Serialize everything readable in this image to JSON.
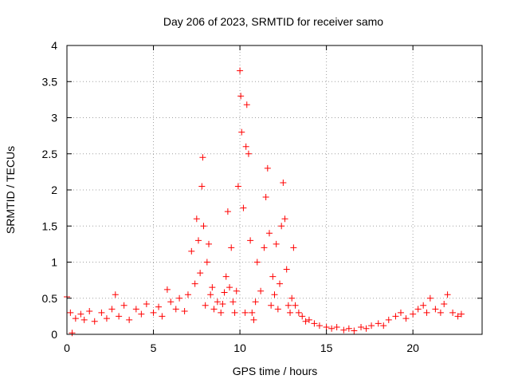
{
  "chart_data": {
    "type": "scatter",
    "title": "Day 206 of 2023, SRMTID for receiver samo",
    "xlabel": "GPS time / hours",
    "ylabel": "SRMTID / TECUs",
    "xlim": [
      0,
      24
    ],
    "ylim": [
      0,
      4
    ],
    "xticks": [
      0,
      5,
      10,
      15,
      20
    ],
    "yticks": [
      0,
      0.5,
      1,
      1.5,
      2,
      2.5,
      3,
      3.5,
      4
    ],
    "xtick_labels": [
      "0",
      "5",
      "10",
      "15",
      "20"
    ],
    "ytick_labels": [
      "0",
      "0.5",
      "1",
      "1.5",
      "2",
      "2.5",
      "3",
      "3.5",
      "4"
    ],
    "grid": true,
    "marker": "+",
    "series": [
      {
        "name": "SRMTID",
        "color": "#ff0000",
        "x": [
          0.0,
          0.2,
          0.3,
          0.5,
          0.8,
          1.0,
          1.3,
          1.6,
          2.0,
          2.3,
          2.6,
          2.8,
          3.0,
          3.3,
          3.6,
          4.0,
          4.3,
          4.6,
          5.0,
          5.3,
          5.5,
          5.8,
          6.0,
          6.3,
          6.5,
          6.8,
          7.0,
          7.2,
          7.4,
          7.5,
          7.6,
          7.7,
          7.8,
          7.85,
          7.9,
          8.0,
          8.1,
          8.2,
          8.3,
          8.4,
          8.5,
          8.7,
          8.9,
          9.0,
          9.1,
          9.2,
          9.3,
          9.4,
          9.5,
          9.6,
          9.7,
          9.8,
          9.9,
          10.0,
          10.05,
          10.1,
          10.2,
          10.3,
          10.35,
          10.4,
          10.5,
          10.6,
          10.7,
          10.8,
          10.9,
          11.0,
          11.2,
          11.4,
          11.5,
          11.6,
          11.7,
          11.8,
          11.9,
          12.0,
          12.1,
          12.2,
          12.3,
          12.4,
          12.5,
          12.6,
          12.7,
          12.8,
          12.9,
          13.0,
          13.1,
          13.2,
          13.4,
          13.6,
          13.8,
          14.0,
          14.3,
          14.6,
          15.0,
          15.3,
          15.6,
          16.0,
          16.3,
          16.6,
          17.0,
          17.3,
          17.6,
          18.0,
          18.3,
          18.6,
          19.0,
          19.3,
          19.6,
          20.0,
          20.3,
          20.6,
          20.8,
          21.0,
          21.3,
          21.6,
          21.8,
          22.0,
          22.3,
          22.6,
          22.8
        ],
        "y": [
          0.52,
          0.3,
          0.02,
          0.22,
          0.28,
          0.2,
          0.32,
          0.18,
          0.3,
          0.22,
          0.35,
          0.55,
          0.25,
          0.4,
          0.2,
          0.35,
          0.28,
          0.42,
          0.3,
          0.38,
          0.25,
          0.62,
          0.45,
          0.35,
          0.5,
          0.32,
          0.55,
          1.15,
          0.7,
          1.6,
          1.3,
          0.85,
          2.05,
          2.45,
          1.5,
          0.4,
          1.0,
          1.25,
          0.55,
          0.65,
          0.35,
          0.45,
          0.3,
          0.42,
          0.58,
          0.8,
          1.7,
          0.65,
          1.2,
          0.45,
          0.3,
          0.6,
          2.05,
          3.65,
          3.3,
          2.8,
          1.75,
          0.3,
          2.6,
          3.18,
          2.5,
          1.3,
          0.3,
          0.2,
          0.45,
          1.0,
          0.6,
          1.2,
          1.9,
          2.3,
          1.4,
          0.4,
          0.8,
          0.55,
          1.25,
          0.35,
          0.7,
          1.5,
          2.1,
          1.6,
          0.9,
          0.4,
          0.3,
          0.5,
          1.2,
          0.4,
          0.3,
          0.25,
          0.18,
          0.2,
          0.15,
          0.12,
          0.1,
          0.08,
          0.1,
          0.06,
          0.08,
          0.05,
          0.1,
          0.08,
          0.12,
          0.15,
          0.12,
          0.2,
          0.25,
          0.3,
          0.22,
          0.28,
          0.35,
          0.4,
          0.3,
          0.5,
          0.35,
          0.3,
          0.42,
          0.55,
          0.3,
          0.25,
          0.28
        ]
      }
    ]
  }
}
